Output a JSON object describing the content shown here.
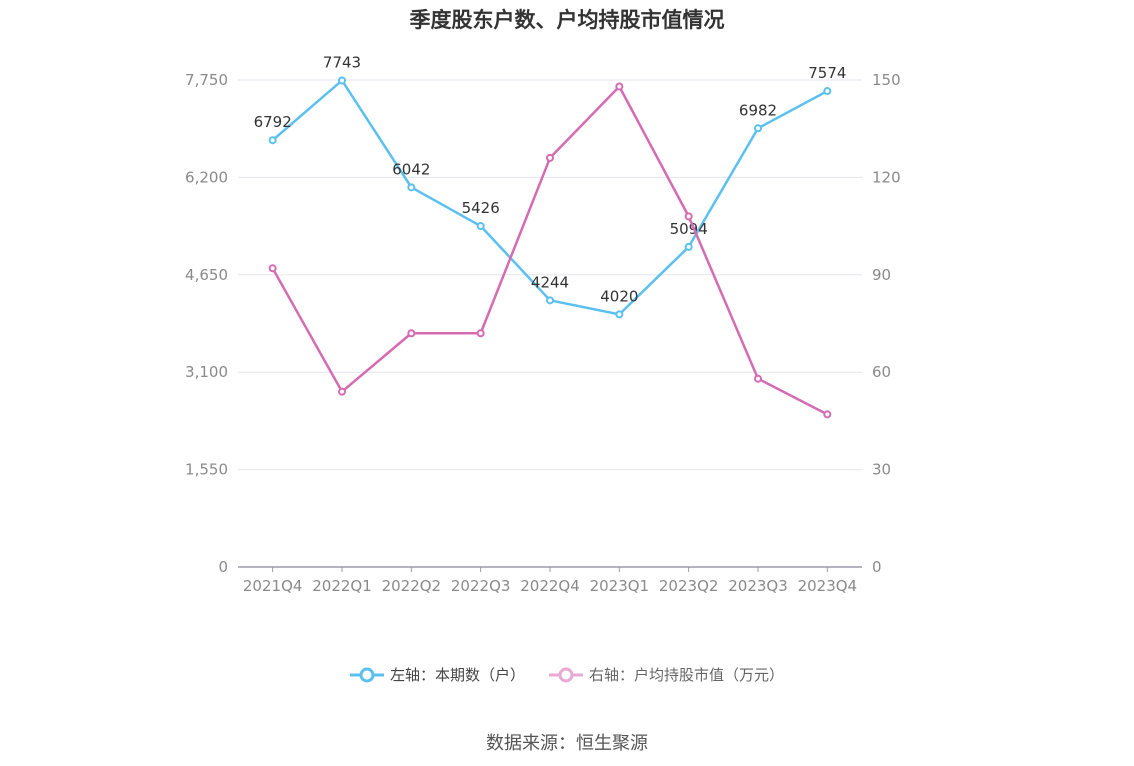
{
  "chart_data": {
    "type": "line",
    "title": "季度股东户数、户均持股市值情况",
    "categories": [
      "2021Q4",
      "2022Q1",
      "2022Q2",
      "2022Q3",
      "2022Q4",
      "2023Q1",
      "2023Q2",
      "2023Q3",
      "2023Q4"
    ],
    "series": [
      {
        "name": "左轴：本期数（户）",
        "axis": "left",
        "color": "#5bc0f0",
        "values": [
          6792,
          7743,
          6042,
          5426,
          4244,
          4020,
          5094,
          6982,
          7574
        ],
        "data_labels": [
          "6792",
          "7743",
          "6042",
          "5426",
          "4244",
          "4020",
          "5094",
          "6982",
          "7574"
        ]
      },
      {
        "name": "右轴：户均持股市值（万元）",
        "axis": "right",
        "color": "#d46bb3",
        "values": [
          92,
          54,
          72,
          72,
          126,
          148,
          108,
          58,
          47
        ]
      }
    ],
    "left_axis": {
      "ylim": [
        0,
        7750
      ],
      "ticks": [
        0,
        1550,
        3100,
        4650,
        6200,
        7750
      ],
      "tick_labels": [
        "0",
        "1,550",
        "3,100",
        "4,650",
        "6,200",
        "7,750"
      ]
    },
    "right_axis": {
      "ylim": [
        0,
        150
      ],
      "ticks": [
        0,
        30,
        60,
        90,
        120,
        150
      ],
      "tick_labels": [
        "0",
        "30",
        "60",
        "90",
        "120",
        "150"
      ]
    },
    "grid": true,
    "legend_position": "bottom"
  },
  "source_text": "数据来源：恒生聚源"
}
